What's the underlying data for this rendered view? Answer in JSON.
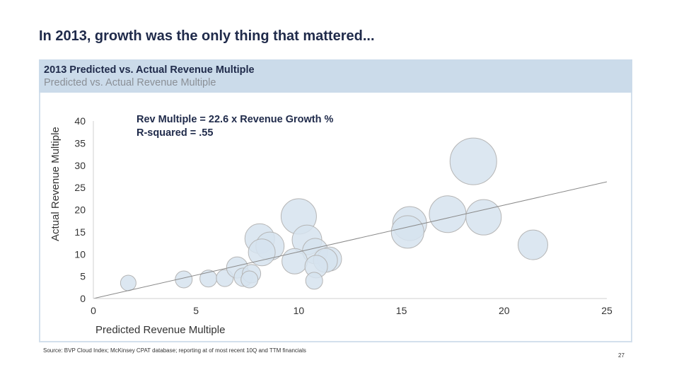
{
  "slide": {
    "title": "In 2013, growth was the only thing that mattered...",
    "source": "Source: BVP Cloud Index; McKinsey CPAT database; reporting at of most recent 10Q and TTM financials",
    "page_number": "27"
  },
  "panel": {
    "title": "2013 Predicted vs. Actual Revenue Multiple",
    "subtitle": "Predicted vs. Actual Revenue Multiple"
  },
  "chart_data": {
    "type": "scatter",
    "subtype": "bubble",
    "xlabel": "Predicted Revenue Multiple",
    "ylabel": "Actual Revenue Multiple",
    "xlim": [
      0,
      25
    ],
    "ylim": [
      0,
      40
    ],
    "xticks": [
      0,
      5,
      10,
      15,
      20,
      25
    ],
    "yticks": [
      0,
      5,
      10,
      15,
      20,
      25,
      30,
      35,
      40
    ],
    "grid": false,
    "legend": "none",
    "annotations": [
      "Rev Multiple = 22.6 x Revenue Growth %",
      "R-squared = .55"
    ],
    "trendline": {
      "x": [
        0,
        25
      ],
      "y": [
        0,
        26.3
      ]
    },
    "bubble_color": "#d6e3ee",
    "bubble_stroke": "#b5b5b5",
    "points": [
      {
        "x": 1.7,
        "y": 3.5,
        "size": 11
      },
      {
        "x": 4.4,
        "y": 4.3,
        "size": 12
      },
      {
        "x": 5.6,
        "y": 4.5,
        "size": 12
      },
      {
        "x": 6.4,
        "y": 4.6,
        "size": 12
      },
      {
        "x": 7.0,
        "y": 7.0,
        "size": 15
      },
      {
        "x": 7.3,
        "y": 4.8,
        "size": 13
      },
      {
        "x": 7.7,
        "y": 5.6,
        "size": 13
      },
      {
        "x": 7.6,
        "y": 4.3,
        "size": 12
      },
      {
        "x": 8.1,
        "y": 13.5,
        "size": 21
      },
      {
        "x": 8.6,
        "y": 11.8,
        "size": 20
      },
      {
        "x": 8.2,
        "y": 10.4,
        "size": 19
      },
      {
        "x": 10.0,
        "y": 18.5,
        "size": 25
      },
      {
        "x": 10.4,
        "y": 13.2,
        "size": 21
      },
      {
        "x": 10.8,
        "y": 10.7,
        "size": 18
      },
      {
        "x": 9.8,
        "y": 8.4,
        "size": 18
      },
      {
        "x": 11.5,
        "y": 8.9,
        "size": 17
      },
      {
        "x": 11.3,
        "y": 8.6,
        "size": 17
      },
      {
        "x": 10.85,
        "y": 7.2,
        "size": 16
      },
      {
        "x": 10.75,
        "y": 4.0,
        "size": 12
      },
      {
        "x": 18.5,
        "y": 30.9,
        "size": 33
      },
      {
        "x": 17.25,
        "y": 19.0,
        "size": 26
      },
      {
        "x": 19.0,
        "y": 18.3,
        "size": 25
      },
      {
        "x": 15.4,
        "y": 16.9,
        "size": 24
      },
      {
        "x": 15.3,
        "y": 15.0,
        "size": 23
      },
      {
        "x": 21.4,
        "y": 12.1,
        "size": 21
      }
    ]
  }
}
